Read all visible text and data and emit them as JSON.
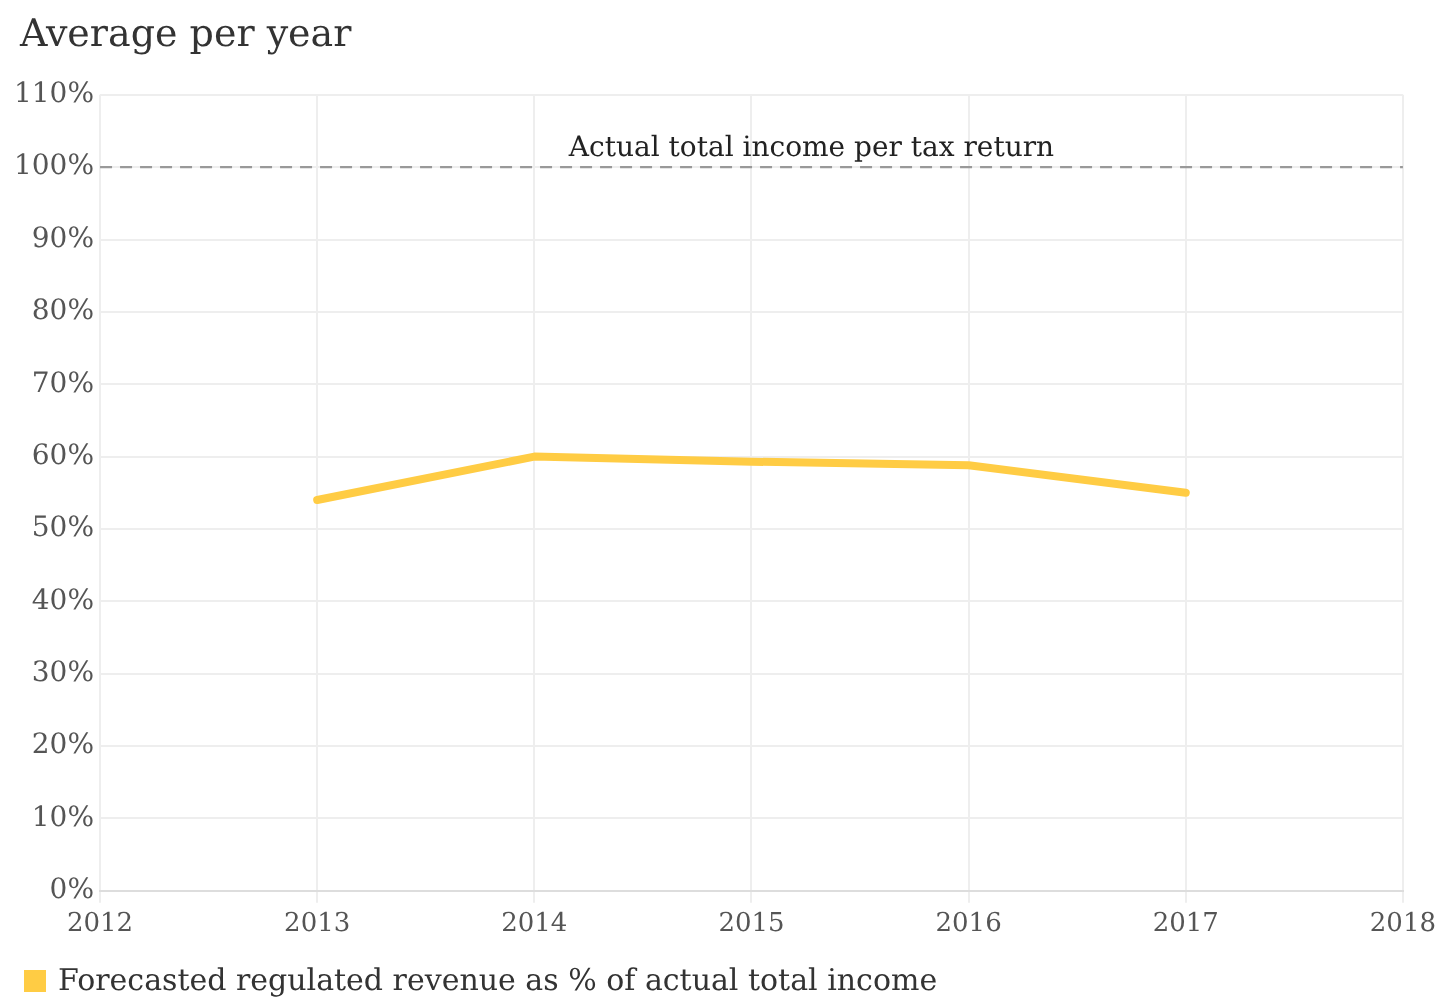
{
  "chart_data": {
    "type": "line",
    "title": "Average per year",
    "x": [
      2013,
      2014,
      2015,
      2016,
      2017
    ],
    "series": [
      {
        "name": "Forecasted regulated revenue as % of actual total income",
        "color": "#ffcc44",
        "values": [
          54,
          60,
          59.3,
          58.8,
          55
        ]
      }
    ],
    "xlim": [
      2012,
      2018
    ],
    "xticks": [
      2012,
      2013,
      2014,
      2015,
      2016,
      2017,
      2018
    ],
    "ylim": [
      0,
      110
    ],
    "yticks": [
      {
        "value": 0,
        "label": "0%"
      },
      {
        "value": 10,
        "label": "10%"
      },
      {
        "value": 20,
        "label": "20%"
      },
      {
        "value": 30,
        "label": "30%"
      },
      {
        "value": 40,
        "label": "40%"
      },
      {
        "value": 50,
        "label": "50%"
      },
      {
        "value": 60,
        "label": "60%"
      },
      {
        "value": 70,
        "label": "70%"
      },
      {
        "value": 80,
        "label": "80%"
      },
      {
        "value": 90,
        "label": "90%"
      },
      {
        "value": 100,
        "label": "100%"
      },
      {
        "value": 110,
        "label": "110%"
      }
    ],
    "ref_lines": [
      {
        "axis": "y",
        "value": 100,
        "label": "Actual total income per tax return",
        "color": "#999999",
        "line_style": "dashed"
      }
    ],
    "grid": true,
    "legend": "bottom left",
    "marker": "none",
    "line_style": "solid"
  }
}
